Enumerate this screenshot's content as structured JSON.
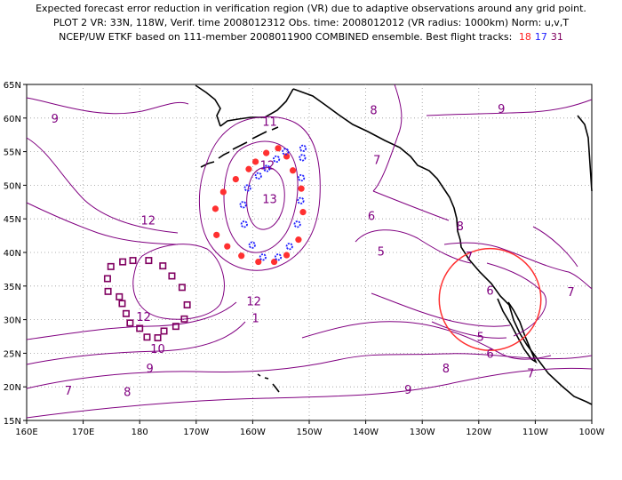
{
  "header": {
    "line1": "Expected forecast error reduction in verification region (VR) due to adaptive observations around any grid point.",
    "line2": "PLOT 2 VR: 33N, 118W, Verif. time 2008012312 Obs. time: 2008012012 (VR radius: 1000km) Norm: u,v,T",
    "line3_prefix": "NCEP/UW ETKF based on 111-member 2008011900 COMBINED ensemble.  Best flight tracks:",
    "tracks": [
      {
        "label": "18",
        "color": "#ff2020"
      },
      {
        "label": "17",
        "color": "#2020ff"
      },
      {
        "label": "31",
        "color": "#800060"
      }
    ]
  },
  "map": {
    "lon_range": [
      160,
      260
    ],
    "lat_range": [
      15,
      65
    ],
    "x_ticks": [
      {
        "v": 160,
        "label": "160E"
      },
      {
        "v": 170,
        "label": "170E"
      },
      {
        "v": 180,
        "label": "180"
      },
      {
        "v": 190,
        "label": "170W"
      },
      {
        "v": 200,
        "label": "160W"
      },
      {
        "v": 210,
        "label": "150W"
      },
      {
        "v": 220,
        "label": "140W"
      },
      {
        "v": 230,
        "label": "130W"
      },
      {
        "v": 240,
        "label": "120W"
      },
      {
        "v": 250,
        "label": "110W"
      },
      {
        "v": 260,
        "label": "100W"
      }
    ],
    "y_ticks": [
      {
        "v": 15,
        "label": "15N"
      },
      {
        "v": 20,
        "label": "20N"
      },
      {
        "v": 25,
        "label": "25N"
      },
      {
        "v": 30,
        "label": "30N"
      },
      {
        "v": 35,
        "label": "35N"
      },
      {
        "v": 40,
        "label": "40N"
      },
      {
        "v": 45,
        "label": "45N"
      },
      {
        "v": 50,
        "label": "50N"
      },
      {
        "v": 55,
        "label": "55N"
      },
      {
        "v": 60,
        "label": "60N"
      },
      {
        "v": 65,
        "label": "65N"
      }
    ],
    "contour_color": "#800080",
    "contour_labels": [
      {
        "text": "9",
        "lon": 165.0,
        "lat": 60.0
      },
      {
        "text": "11",
        "lon": 203.0,
        "lat": 59.5
      },
      {
        "text": "12",
        "lon": 202.6,
        "lat": 53.0
      },
      {
        "text": "13",
        "lon": 203.0,
        "lat": 48.0
      },
      {
        "text": "8",
        "lon": 221.4,
        "lat": 61.2
      },
      {
        "text": "9",
        "lon": 244.0,
        "lat": 61.4
      },
      {
        "text": "7",
        "lon": 222.0,
        "lat": 53.8
      },
      {
        "text": "6",
        "lon": 221.0,
        "lat": 45.5
      },
      {
        "text": "5",
        "lon": 222.7,
        "lat": 40.2
      },
      {
        "text": "8",
        "lon": 236.7,
        "lat": 44.0
      },
      {
        "text": "7",
        "lon": 238.3,
        "lat": 39.5
      },
      {
        "text": "6",
        "lon": 242.0,
        "lat": 34.4
      },
      {
        "text": "7",
        "lon": 256.3,
        "lat": 34.2
      },
      {
        "text": "5",
        "lon": 240.3,
        "lat": 27.5
      },
      {
        "text": "6",
        "lon": 242.0,
        "lat": 25.0
      },
      {
        "text": "7",
        "lon": 249.2,
        "lat": 22.1
      },
      {
        "text": "8",
        "lon": 234.2,
        "lat": 22.8
      },
      {
        "text": "9",
        "lon": 227.5,
        "lat": 19.6
      },
      {
        "text": "12",
        "lon": 181.5,
        "lat": 44.8
      },
      {
        "text": "12",
        "lon": 180.7,
        "lat": 30.5
      },
      {
        "text": "12",
        "lon": 200.2,
        "lat": 32.8
      },
      {
        "text": "1",
        "lon": 200.5,
        "lat": 30.3
      },
      {
        "text": "10",
        "lon": 183.2,
        "lat": 25.7
      },
      {
        "text": "9",
        "lon": 181.8,
        "lat": 22.8
      },
      {
        "text": "8",
        "lon": 177.8,
        "lat": 19.3
      },
      {
        "text": "7",
        "lon": 167.4,
        "lat": 19.5
      }
    ],
    "verification_region": {
      "center_lon": 242.0,
      "center_lat": 33.0,
      "radius_deg": 9.0,
      "color": "#ff3030"
    }
  },
  "flight_tracks": {
    "red": {
      "color": "#ff3030",
      "points": [
        [
          202.4,
          54.8
        ],
        [
          204.5,
          55.5
        ],
        [
          206.0,
          54.3
        ],
        [
          207.1,
          52.2
        ],
        [
          208.6,
          49.5
        ],
        [
          208.9,
          46.0
        ],
        [
          208.1,
          41.9
        ],
        [
          206.0,
          39.6
        ],
        [
          203.8,
          38.6
        ],
        [
          201.0,
          38.6
        ],
        [
          198.0,
          39.5
        ],
        [
          195.5,
          40.9
        ],
        [
          193.6,
          42.6
        ],
        [
          193.4,
          46.5
        ],
        [
          194.8,
          49.0
        ],
        [
          197.0,
          50.9
        ],
        [
          199.3,
          52.4
        ],
        [
          200.5,
          53.5
        ]
      ]
    },
    "blue": {
      "color": "#2020ff",
      "points": [
        [
          208.9,
          55.5
        ],
        [
          208.8,
          54.1
        ],
        [
          208.6,
          51.1
        ],
        [
          208.5,
          47.7
        ],
        [
          207.9,
          44.2
        ],
        [
          206.5,
          40.9
        ],
        [
          204.5,
          39.3
        ],
        [
          201.8,
          39.3
        ],
        [
          199.9,
          41.1
        ],
        [
          198.5,
          44.2
        ],
        [
          198.3,
          47.1
        ],
        [
          199.1,
          49.6
        ],
        [
          201.0,
          51.4
        ],
        [
          202.5,
          52.5
        ],
        [
          204.2,
          53.9
        ],
        [
          205.8,
          55.0
        ]
      ]
    },
    "purple": {
      "color": "#800060",
      "points": [
        [
          174.9,
          37.9
        ],
        [
          177.0,
          38.6
        ],
        [
          178.8,
          38.8
        ],
        [
          181.6,
          38.8
        ],
        [
          184.1,
          38.0
        ],
        [
          185.7,
          36.5
        ],
        [
          187.5,
          34.8
        ],
        [
          188.4,
          32.2
        ],
        [
          187.9,
          30.1
        ],
        [
          186.4,
          29.0
        ],
        [
          184.3,
          28.3
        ],
        [
          183.2,
          27.3
        ],
        [
          181.3,
          27.4
        ],
        [
          180.0,
          28.7
        ],
        [
          178.3,
          29.5
        ],
        [
          177.6,
          30.9
        ],
        [
          176.9,
          32.4
        ],
        [
          176.4,
          33.4
        ],
        [
          174.4,
          34.2
        ],
        [
          174.3,
          36.1
        ]
      ]
    }
  }
}
